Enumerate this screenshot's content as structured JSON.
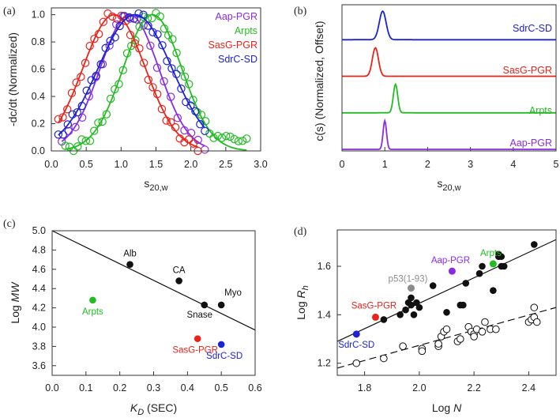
{
  "colors": {
    "purple": "#8a2be2",
    "green": "#22bb22",
    "red": "#e8231a",
    "blue": "#1e22d6",
    "gray": "#8c8c8c",
    "black": "#111111"
  },
  "chart_data": [
    {
      "panel": "(a)",
      "type": "scatter",
      "xlabel_main": "s",
      "xlabel_sub": "20,w",
      "ylabel": "-dc/dt (Normalized)",
      "xlim": [
        0.0,
        3.0
      ],
      "ylim": [
        0.0,
        1.05
      ],
      "xticks": [
        "0.0",
        "0.5",
        "1.0",
        "1.5",
        "2.0",
        "2.5",
        "3.0"
      ],
      "yticks": [
        "0.0",
        "0.2",
        "0.4",
        "0.6",
        "0.8",
        "1.0"
      ],
      "legend": [
        {
          "label": "Aap-PGR",
          "color": "#8a2be2"
        },
        {
          "label": "Arpts",
          "color": "#22bb22"
        },
        {
          "label": "SasG-PGR",
          "color": "#e8231a"
        },
        {
          "label": "SdrC-SD",
          "color": "#1e22d6"
        }
      ],
      "series": [
        {
          "name": "Aap-PGR",
          "color": "#8a2be2",
          "fit": {
            "center": 1.12,
            "sigma": 0.42
          },
          "x_range": [
            0.15,
            2.2
          ],
          "points": 22
        },
        {
          "name": "Arpts",
          "color": "#22bb22",
          "fit": {
            "center": 1.45,
            "sigma": 0.42
          },
          "x_range": [
            0.2,
            2.8
          ],
          "points": 45
        },
        {
          "name": "SasG-PGR",
          "color": "#e8231a",
          "fit": {
            "center": 0.9,
            "sigma": 0.45
          },
          "x_range": [
            0.1,
            2.1
          ],
          "points": 32
        },
        {
          "name": "SdrC-SD",
          "color": "#1e22d6",
          "fit": {
            "center": 1.2,
            "sigma": 0.53
          },
          "x_range": [
            0.1,
            2.2
          ],
          "points": 32
        }
      ]
    },
    {
      "panel": "(b)",
      "type": "line",
      "xlabel_main": "s",
      "xlabel_sub": "20,w",
      "ylabel": "c(s) (Normalized, Offset)",
      "xlim": [
        0,
        5
      ],
      "xticks": [
        "0",
        "1",
        "2",
        "3",
        "4",
        "5"
      ],
      "series": [
        {
          "name": "SdrC-SD",
          "color": "#1e22d6",
          "peak_s": 0.95,
          "width": 0.08,
          "offset": 3
        },
        {
          "name": "SasG-PGR",
          "color": "#e8231a",
          "peak_s": 0.78,
          "width": 0.07,
          "offset": 2
        },
        {
          "name": "Arpts",
          "color": "#22bb22",
          "peak_s": 1.25,
          "width": 0.05,
          "offset": 1
        },
        {
          "name": "Aap-PGR",
          "color": "#8a2be2",
          "peak_s": 1.0,
          "width": 0.04,
          "offset": 0
        }
      ]
    },
    {
      "panel": "(c)",
      "type": "scatter",
      "xlabel_main": "K",
      "xlabel_sub": "D",
      "xlabel_suffix": " (SEC)",
      "ylabel_main": "Log ",
      "ylabel_italic": "MW",
      "xlim": [
        0.0,
        0.6
      ],
      "ylim": [
        3.5,
        5.0
      ],
      "xticks": [
        "0.0",
        "0.1",
        "0.2",
        "0.3",
        "0.4",
        "0.5",
        "0.6"
      ],
      "yticks": [
        "3.6",
        "3.8",
        "4.0",
        "4.2",
        "4.4",
        "4.6",
        "4.8",
        "5.0"
      ],
      "fit_line": {
        "x": [
          0.0,
          0.6
        ],
        "y": [
          5.0,
          3.97
        ]
      },
      "points": [
        {
          "label": "Alb",
          "x": 0.23,
          "y": 4.65,
          "color": "#111111"
        },
        {
          "label": "CA",
          "x": 0.375,
          "y": 4.48,
          "color": "#111111"
        },
        {
          "label": "Snase",
          "x": 0.45,
          "y": 4.23,
          "color": "#111111"
        },
        {
          "label": "Myo",
          "x": 0.5,
          "y": 4.23,
          "color": "#111111"
        },
        {
          "label": "Arpts",
          "x": 0.12,
          "y": 4.28,
          "color": "#22bb22"
        },
        {
          "label": "SasG-PGR",
          "x": 0.43,
          "y": 3.88,
          "color": "#e8231a"
        },
        {
          "label": "SdrC-SD",
          "x": 0.5,
          "y": 3.82,
          "color": "#1e22d6"
        }
      ]
    },
    {
      "panel": "(d)",
      "type": "scatter",
      "xlabel_main": "Log ",
      "xlabel_italic": "N",
      "ylabel_main": "Log ",
      "ylabel_italic": "R",
      "ylabel_sub": "h",
      "xlim": [
        1.7,
        2.5
      ],
      "ylim": [
        1.15,
        1.75
      ],
      "xticks": [
        "1.8",
        "2.0",
        "2.2",
        "2.4"
      ],
      "yticks": [
        "1.2",
        "1.4",
        "1.6"
      ],
      "solid_fit": {
        "x": [
          1.7,
          2.5
        ],
        "y": [
          1.29,
          1.71
        ]
      },
      "dashed_fit": {
        "x": [
          1.7,
          2.5
        ],
        "y": [
          1.18,
          1.43
        ]
      },
      "labeled_points": [
        {
          "label": "Aap-PGR",
          "x": 2.12,
          "y": 1.58,
          "color": "#8a2be2"
        },
        {
          "label": "Arpts",
          "x": 2.27,
          "y": 1.61,
          "color": "#22bb22"
        },
        {
          "label": "p53(1-93)",
          "x": 1.97,
          "y": 1.51,
          "color": "#8c8c8c"
        },
        {
          "label": "SasG-PGR",
          "x": 1.84,
          "y": 1.39,
          "color": "#e8231a"
        },
        {
          "label": "SdrC-SD",
          "x": 1.77,
          "y": 1.32,
          "color": "#1e22d6"
        }
      ],
      "filled_points": [
        [
          1.87,
          1.38
        ],
        [
          1.93,
          1.4
        ],
        [
          1.95,
          1.42
        ],
        [
          1.96,
          1.45
        ],
        [
          1.97,
          1.47
        ],
        [
          1.97,
          1.44
        ],
        [
          1.98,
          1.4
        ],
        [
          1.99,
          1.45
        ],
        [
          2.0,
          1.43
        ],
        [
          2.05,
          1.52
        ],
        [
          2.1,
          1.41
        ],
        [
          2.15,
          1.44
        ],
        [
          2.16,
          1.44
        ],
        [
          2.17,
          1.53
        ],
        [
          2.22,
          1.57
        ],
        [
          2.23,
          1.6
        ],
        [
          2.27,
          1.5
        ],
        [
          2.29,
          1.64
        ],
        [
          2.29,
          1.65
        ],
        [
          2.3,
          1.6
        ],
        [
          2.31,
          1.6
        ],
        [
          2.3,
          1.64
        ],
        [
          2.42,
          1.69
        ]
      ],
      "open_points": [
        [
          1.77,
          1.2
        ],
        [
          1.87,
          1.22
        ],
        [
          1.94,
          1.27
        ],
        [
          2.01,
          1.26
        ],
        [
          2.01,
          1.25
        ],
        [
          2.07,
          1.27
        ],
        [
          2.07,
          1.28
        ],
        [
          2.08,
          1.31
        ],
        [
          2.09,
          1.33
        ],
        [
          2.1,
          1.34
        ],
        [
          2.14,
          1.29
        ],
        [
          2.15,
          1.3
        ],
        [
          2.18,
          1.35
        ],
        [
          2.19,
          1.33
        ],
        [
          2.2,
          1.32
        ],
        [
          2.2,
          1.31
        ],
        [
          2.21,
          1.34
        ],
        [
          2.23,
          1.33
        ],
        [
          2.24,
          1.37
        ],
        [
          2.26,
          1.34
        ],
        [
          2.28,
          1.34
        ],
        [
          2.4,
          1.37
        ],
        [
          2.41,
          1.38
        ],
        [
          2.42,
          1.39
        ],
        [
          2.42,
          1.43
        ],
        [
          2.43,
          1.37
        ]
      ]
    }
  ]
}
